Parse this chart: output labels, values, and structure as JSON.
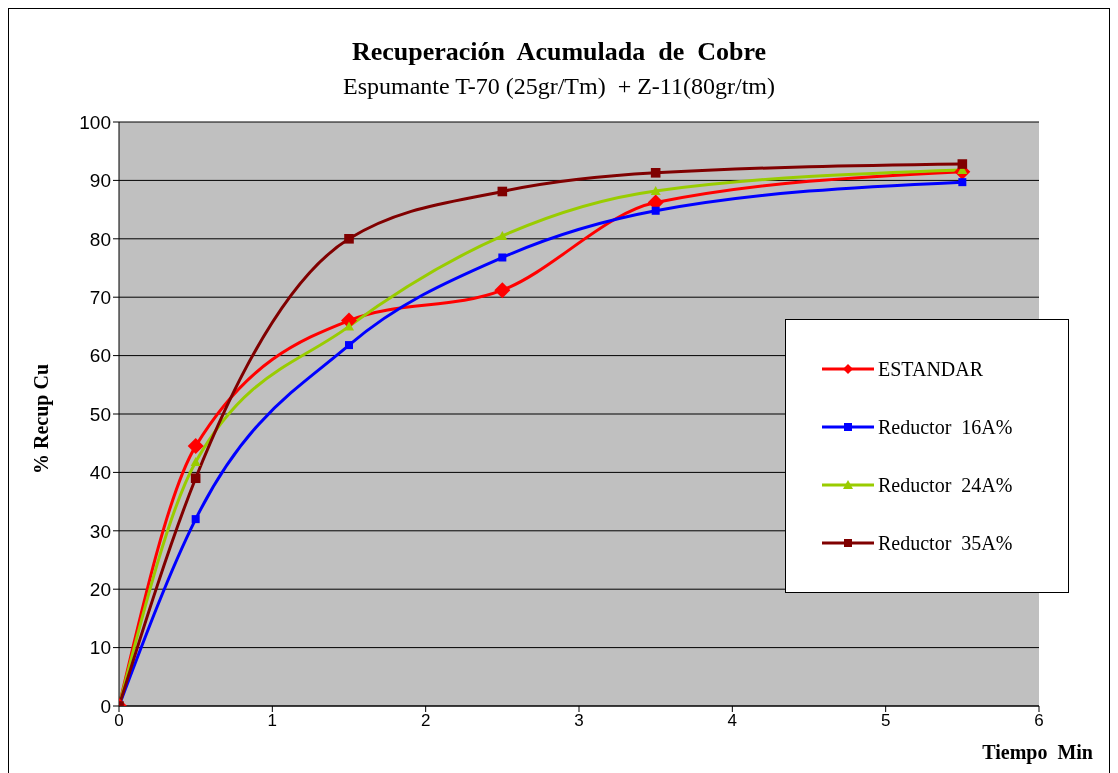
{
  "chart_data": {
    "type": "line",
    "title": "Recuperación  Acumulada  de  Cobre",
    "subtitle": "Espumante T-70 (25gr/Tm)  + Z-11(80gr/tm)",
    "xlabel": "Tiempo  Min",
    "ylabel": "% Recup Cu",
    "x": [
      0,
      0.5,
      1.5,
      2.5,
      3.5,
      5.5
    ],
    "series": [
      {
        "name": "ESTANDAR",
        "color": "#ff0000",
        "marker": "diamond",
        "values": [
          0,
          44.5,
          66,
          71.2,
          86.2,
          91.5
        ]
      },
      {
        "name": "Reductor  16A%",
        "color": "#0000ff",
        "marker": "square",
        "values": [
          0,
          32,
          61.8,
          76.8,
          84.8,
          89.7
        ]
      },
      {
        "name": "Reductor  24A%",
        "color": "#99cc00",
        "marker": "triangle",
        "values": [
          0,
          41.8,
          65,
          80.5,
          88.2,
          91.8
        ]
      },
      {
        "name": "Reductor  35A%",
        "color": "#800000",
        "marker": "square",
        "values": [
          0,
          39,
          80,
          88.1,
          91.3,
          92.8
        ]
      }
    ],
    "xlim": [
      0,
      6
    ],
    "xticks": [
      0,
      1,
      2,
      3,
      4,
      5,
      6
    ],
    "ylim": [
      0,
      100
    ],
    "yticks": [
      0,
      10,
      20,
      30,
      40,
      50,
      60,
      70,
      80,
      90,
      100
    ],
    "grid": "y",
    "legend": "right",
    "line_style": "solid"
  }
}
